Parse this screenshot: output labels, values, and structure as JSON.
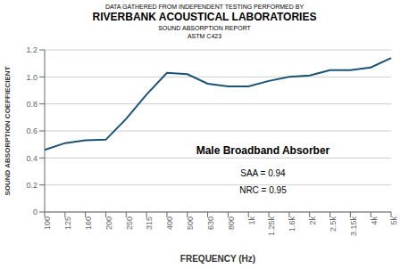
{
  "chart_data": {
    "type": "line",
    "title": "RIVERBANK ACOUSTICAL LABORATORIES",
    "subtitle": [
      "DATA GATHERED FROM INDEPENDENT TESTING PERFORMED BY",
      "SOUND ABSORPTION REPORT",
      "ASTM C423"
    ],
    "annotations": [
      "Male Broadband Absorber",
      "SAA = 0.94",
      "NRC = 0.95"
    ],
    "x_label": "FREQUENCY (Hz)",
    "y_label": "SOUND ABSORPTION COEFFIECIENT",
    "categories": [
      "100",
      "125",
      "160",
      "200",
      "250",
      "315",
      "400",
      "500",
      "630",
      "800",
      "1k",
      "1.25k",
      "1.6k",
      "2k",
      "2.5k",
      "3.15k",
      "4k",
      "5k"
    ],
    "values": [
      0.46,
      0.51,
      0.53,
      0.535,
      0.69,
      0.87,
      1.03,
      1.02,
      0.95,
      0.93,
      0.93,
      0.97,
      1.0,
      1.01,
      1.05,
      1.05,
      1.07,
      1.14
    ],
    "color": "#1a5276",
    "ylim": [
      0,
      1.2
    ],
    "yticks": [
      0,
      0.2,
      0.4,
      0.6,
      0.8,
      {
        "value": 1.0,
        "label": "1.0"
      },
      1.2
    ],
    "grid": true
  }
}
